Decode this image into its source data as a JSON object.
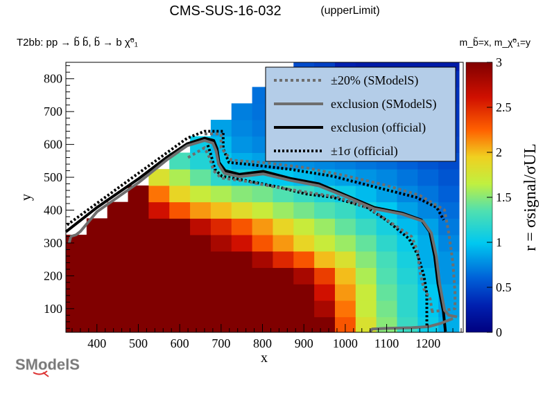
{
  "chart_data": {
    "type": "heatmap",
    "title": "CMS-SUS-16-032",
    "title_suffix": "(upperLimit)",
    "subtitle_left": "T2bb: pp → b̃ b̃, b̃ → b χ̃⁰₁",
    "subtitle_right": "m_b̃=x, m_χ̃⁰₁=y",
    "xlabel": "x",
    "ylabel": "y",
    "zlabel": "r = σsignal/σUL",
    "xlim": [
      325,
      1285
    ],
    "ylim": [
      28,
      850
    ],
    "zlim": [
      0,
      3
    ],
    "xticks": [
      400,
      500,
      600,
      700,
      800,
      900,
      1000,
      1100,
      1200
    ],
    "yticks": [
      100,
      200,
      300,
      400,
      500,
      600,
      700,
      800
    ],
    "zticks": [
      "0",
      "0.5",
      "1",
      "1.5",
      "2",
      "2.5",
      "3"
    ],
    "cell_size": [
      50,
      50
    ],
    "x_centers": [
      350,
      400,
      450,
      500,
      550,
      600,
      650,
      700,
      750,
      800,
      850,
      900,
      950,
      1000,
      1050,
      1100,
      1150,
      1200,
      1250
    ],
    "y_centers": [
      50,
      100,
      150,
      200,
      250,
      300,
      350,
      400,
      450,
      500,
      550,
      600,
      650,
      700,
      750,
      800,
      850
    ],
    "z": [
      [
        3,
        3,
        3,
        3,
        3,
        3,
        3,
        3,
        3,
        3,
        3,
        3,
        3,
        2.3,
        1.8,
        1.5,
        1.25,
        1.05,
        0.9
      ],
      [
        3,
        3,
        3,
        3,
        3,
        3,
        3,
        3,
        3,
        3,
        3,
        3,
        2.8,
        2.2,
        1.7,
        1.45,
        1.2,
        1.0,
        0.85
      ],
      [
        3,
        3,
        3,
        3,
        3,
        3,
        3,
        3,
        3,
        3,
        3,
        3,
        2.6,
        2.1,
        1.7,
        1.4,
        1.2,
        1.0,
        0.85
      ],
      [
        3,
        3,
        3,
        3,
        3,
        3,
        3,
        3,
        3,
        3,
        3,
        2.8,
        2.4,
        2.0,
        1.6,
        1.35,
        1.15,
        0.95,
        0.8
      ],
      [
        3,
        3,
        3,
        3,
        3,
        3,
        3,
        3,
        3,
        2.8,
        2.5,
        2.3,
        2.0,
        1.8,
        1.5,
        1.3,
        1.1,
        0.9,
        0.8
      ],
      [
        3,
        3,
        3,
        3,
        3,
        3,
        3,
        2.8,
        2.6,
        2.3,
        2.1,
        1.9,
        1.7,
        1.55,
        1.4,
        1.2,
        1.05,
        0.9,
        0.75
      ],
      [
        null,
        3,
        3,
        3,
        3,
        3,
        2.7,
        2.5,
        2.3,
        2.1,
        1.9,
        1.7,
        1.55,
        1.4,
        1.25,
        1.1,
        0.95,
        0.85,
        0.7
      ],
      [
        null,
        null,
        3,
        3,
        2.6,
        2.3,
        2.1,
        2.0,
        1.85,
        1.7,
        1.55,
        1.45,
        1.35,
        1.25,
        1.1,
        1.0,
        0.85,
        0.75,
        0.65
      ],
      [
        null,
        null,
        null,
        3,
        2.2,
        1.9,
        1.7,
        1.6,
        1.5,
        1.45,
        1.35,
        1.25,
        1.15,
        1.05,
        0.95,
        0.85,
        0.75,
        0.68,
        0.6
      ],
      [
        null,
        null,
        null,
        null,
        1.8,
        1.6,
        1.4,
        1.2,
        1.1,
        1.05,
        1.0,
        0.95,
        0.9,
        0.85,
        0.8,
        0.75,
        0.68,
        0.62,
        0.55
      ],
      [
        null,
        null,
        null,
        null,
        null,
        1.3,
        1.15,
        1.0,
        0.9,
        0.85,
        0.8,
        0.78,
        0.75,
        0.72,
        0.68,
        0.65,
        0.6,
        0.55,
        0.5
      ],
      [
        null,
        null,
        null,
        null,
        null,
        null,
        1.05,
        0.95,
        0.8,
        0.75,
        0.72,
        0.7,
        0.68,
        0.65,
        0.62,
        0.58,
        0.55,
        0.5,
        0.45
      ],
      [
        null,
        null,
        null,
        null,
        null,
        null,
        null,
        0.85,
        0.75,
        0.7,
        0.68,
        0.65,
        0.62,
        0.6,
        0.57,
        0.54,
        0.5,
        0.46,
        0.42
      ],
      [
        null,
        null,
        null,
        null,
        null,
        null,
        null,
        null,
        0.72,
        0.67,
        0.64,
        0.6,
        0.58,
        0.55,
        0.52,
        0.5,
        0.47,
        0.43,
        0.4
      ],
      [
        null,
        null,
        null,
        null,
        null,
        null,
        null,
        null,
        null,
        0.66,
        0.62,
        0.58,
        0.55,
        0.52,
        0.5,
        0.47,
        0.44,
        0.41,
        0.38
      ],
      [
        null,
        null,
        null,
        null,
        null,
        null,
        null,
        null,
        null,
        null,
        0.6,
        0.56,
        0.53,
        0.5,
        0.47,
        0.44,
        0.41,
        0.38,
        0.35
      ],
      [
        null,
        null,
        null,
        null,
        null,
        null,
        null,
        null,
        null,
        null,
        null,
        0.5,
        0.45,
        0.3,
        0.25,
        0.25,
        0.25,
        0.25,
        0.25
      ]
    ],
    "contours": [
      {
        "name": "±1σ (official) upper",
        "style": "official-dotted",
        "points": [
          [
            328,
            355
          ],
          [
            501,
            513
          ],
          [
            618,
            619
          ],
          [
            660,
            640
          ],
          [
            705,
            640
          ],
          [
            705,
            587
          ],
          [
            719,
            545
          ],
          [
            769,
            539
          ],
          [
            869,
            524
          ],
          [
            970,
            503
          ],
          [
            1070,
            471
          ],
          [
            1171,
            439
          ],
          [
            1221,
            408
          ],
          [
            1238,
            370
          ]
        ]
      },
      {
        "name": "±1σ (official) lower",
        "style": "official-dotted",
        "points": [
          [
            668,
            598
          ],
          [
            676,
            566
          ],
          [
            685,
            524
          ],
          [
            702,
            503
          ],
          [
            752,
            492
          ],
          [
            836,
            471
          ],
          [
            902,
            450
          ],
          [
            970,
            439
          ],
          [
            1053,
            408
          ],
          [
            1103,
            366
          ],
          [
            1154,
            313
          ],
          [
            1175,
            264
          ],
          [
            1190,
            200
          ],
          [
            1197,
            144
          ],
          [
            1197,
            49
          ]
        ]
      },
      {
        "name": "±20% (SModelS) upper",
        "style": "smodels-dotted",
        "points": [
          [
            660,
            632
          ],
          [
            700,
            632
          ],
          [
            700,
            590
          ],
          [
            725,
            552
          ],
          [
            800,
            545
          ],
          [
            900,
            530
          ],
          [
            1000,
            505
          ],
          [
            1100,
            475
          ],
          [
            1180,
            445
          ],
          [
            1240,
            400
          ],
          [
            1250,
            330
          ],
          [
            1260,
            240
          ],
          [
            1265,
            150
          ],
          [
            1265,
            100
          ],
          [
            1240,
            95
          ],
          [
            1200,
            90
          ]
        ]
      },
      {
        "name": "±20% (SModelS) lower",
        "style": "smodels-dotted",
        "points": [
          [
            620,
            560
          ],
          [
            660,
            590
          ],
          [
            672,
            560
          ],
          [
            682,
            520
          ],
          [
            700,
            498
          ],
          [
            760,
            488
          ],
          [
            840,
            468
          ],
          [
            920,
            452
          ],
          [
            980,
            440
          ],
          [
            1060,
            404
          ],
          [
            1110,
            362
          ],
          [
            1160,
            320
          ],
          [
            1175,
            275
          ],
          [
            1180,
            215
          ],
          [
            1190,
            160
          ],
          [
            1205,
            130
          ],
          [
            1210,
            90
          ]
        ]
      },
      {
        "name": "exclusion (official)",
        "style": "official-solid",
        "points": [
          [
            325,
            334
          ],
          [
            400,
            408
          ],
          [
            501,
            496
          ],
          [
            568,
            560
          ],
          [
            618,
            602
          ],
          [
            660,
            619
          ],
          [
            682,
            612
          ],
          [
            690,
            587
          ],
          [
            695,
            545
          ],
          [
            710,
            520
          ],
          [
            744,
            509
          ],
          [
            802,
            518
          ],
          [
            869,
            496
          ],
          [
            936,
            480
          ],
          [
            1003,
            444
          ],
          [
            1070,
            408
          ],
          [
            1137,
            391
          ],
          [
            1184,
            370
          ],
          [
            1204,
            334
          ],
          [
            1216,
            260
          ],
          [
            1224,
            176
          ],
          [
            1237,
            91
          ],
          [
            1242,
            30
          ]
        ]
      },
      {
        "name": "exclusion (SModelS)",
        "style": "smodels-solid",
        "points": [
          [
            333,
            300
          ],
          [
            337,
            320
          ],
          [
            350,
            325
          ],
          [
            360,
            335
          ],
          [
            400,
            395
          ],
          [
            501,
            484
          ],
          [
            568,
            552
          ],
          [
            618,
            596
          ],
          [
            660,
            612
          ],
          [
            680,
            604
          ],
          [
            688,
            580
          ],
          [
            694,
            540
          ],
          [
            708,
            512
          ],
          [
            744,
            502
          ],
          [
            802,
            510
          ],
          [
            869,
            490
          ],
          [
            936,
            474
          ],
          [
            1003,
            440
          ],
          [
            1070,
            404
          ],
          [
            1137,
            388
          ],
          [
            1188,
            366
          ],
          [
            1208,
            330
          ],
          [
            1220,
            260
          ],
          [
            1228,
            176
          ],
          [
            1240,
            95
          ],
          [
            1250,
            80
          ],
          [
            1270,
            75
          ]
        ]
      },
      {
        "name": "SModelS boundary",
        "style": "smodels-solid",
        "points": [
          [
            1060,
            30
          ],
          [
            1065,
            38
          ],
          [
            1100,
            40
          ],
          [
            1160,
            42
          ],
          [
            1200,
            45
          ],
          [
            1230,
            55
          ],
          [
            1260,
            70
          ]
        ]
      }
    ],
    "legend": {
      "placement": "top-right",
      "entries": [
        {
          "label": "±20% (SModelS)",
          "style": "smodels-dotted"
        },
        {
          "label": "exclusion (SModelS)",
          "style": "smodels-solid"
        },
        {
          "label": "exclusion (official)",
          "style": "official-solid"
        },
        {
          "label": "±1σ (official)",
          "style": "official-dotted"
        }
      ]
    }
  },
  "logo": {
    "text": "SModelS"
  }
}
